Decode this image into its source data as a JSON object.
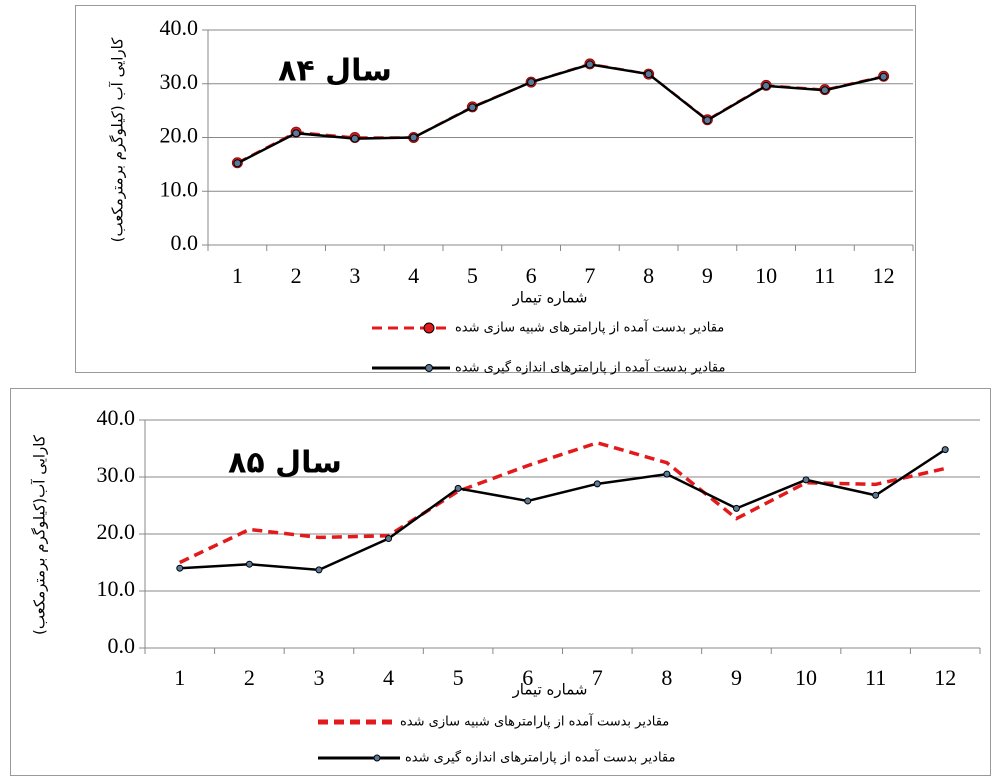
{
  "chart_data": [
    {
      "type": "line",
      "title": "سال ۸۴",
      "x_label": "شماره تیمار",
      "y_label": "کارایی آب (کیلوگرم برمترمکعب)",
      "categories": [
        "1",
        "2",
        "3",
        "4",
        "5",
        "6",
        "7",
        "8",
        "9",
        "10",
        "11",
        "12"
      ],
      "ylim": [
        0,
        40
      ],
      "yticks": [
        {
          "value": 0,
          "label": "0.0"
        },
        {
          "value": 10,
          "label": "10.0"
        },
        {
          "value": 20,
          "label": "20.0"
        },
        {
          "value": 30,
          "label": "30.0"
        },
        {
          "value": 40,
          "label": "40.0"
        }
      ],
      "grid": true,
      "series": [
        {
          "name": "مقادیر بدست آمده از پارامترهای شبیه سازی شده",
          "color": "#e31a1c",
          "line_style": "dashed",
          "markers": true,
          "values": [
            15.3,
            21.0,
            20.0,
            20.0,
            25.7,
            30.3,
            33.7,
            31.8,
            23.3,
            29.7,
            28.9,
            31.4
          ]
        },
        {
          "name": "مقادیر بدست آمده از پارامترهای اندازه گیری شده",
          "color": "#000000",
          "line_style": "solid",
          "markers": true,
          "values": [
            15.2,
            20.8,
            19.8,
            20.0,
            25.6,
            30.3,
            33.6,
            31.8,
            23.2,
            29.6,
            28.8,
            31.3
          ]
        }
      ]
    },
    {
      "type": "line",
      "title": "سال ۸۵",
      "x_label": "شماره تیمار",
      "y_label": "کارایی آب(کیلوگرم برمترمکعب)",
      "categories": [
        "1",
        "2",
        "3",
        "4",
        "5",
        "6",
        "7",
        "8",
        "9",
        "10",
        "11",
        "12"
      ],
      "ylim": [
        0,
        40
      ],
      "yticks": [
        {
          "value": 0,
          "label": "0.0"
        },
        {
          "value": 10,
          "label": "10.0"
        },
        {
          "value": 20,
          "label": "20.0"
        },
        {
          "value": 30,
          "label": "30.0"
        },
        {
          "value": 40,
          "label": "40.0"
        }
      ],
      "grid": true,
      "series": [
        {
          "name": "مقادیر  بدست آمده از پارامترهای شبیه سازی شده",
          "color": "#e31a1c",
          "line_style": "dashed",
          "markers": false,
          "values": [
            15.0,
            20.8,
            19.4,
            19.7,
            27.5,
            32.0,
            36.0,
            32.5,
            22.7,
            29.0,
            28.7,
            31.5
          ]
        },
        {
          "name": "مقادیر  بدست آمده از پارامترهای اندازه گیری شده",
          "color": "#000000",
          "line_style": "solid",
          "markers": true,
          "values": [
            14.0,
            14.7,
            13.7,
            19.2,
            28.0,
            25.8,
            28.8,
            30.5,
            24.5,
            29.5,
            26.8,
            34.8
          ]
        }
      ]
    }
  ]
}
